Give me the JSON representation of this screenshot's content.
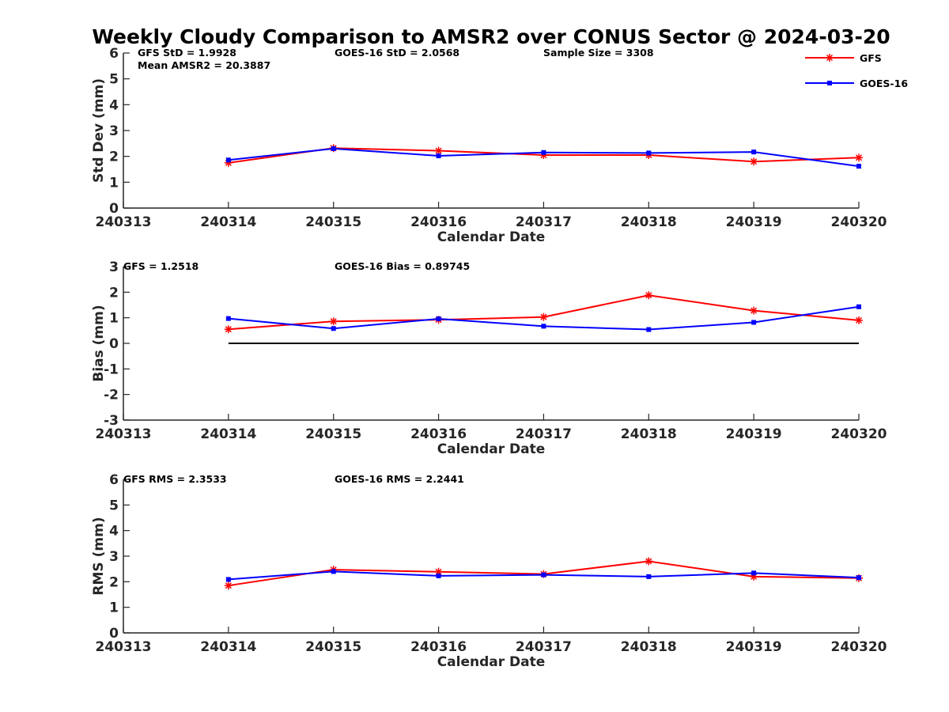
{
  "chart_data": {
    "title": "Weekly Cloudy Comparison to AMSR2 over CONUS Sector @ 2024-03-20",
    "type": "line",
    "x_ticks": [
      "240313",
      "240314",
      "240315",
      "240316",
      "240317",
      "240318",
      "240319",
      "240320"
    ],
    "x": [
      "240314",
      "240315",
      "240316",
      "240317",
      "240318",
      "240319",
      "240320"
    ],
    "legend": {
      "position": "top-right",
      "entries": [
        {
          "name": "GFS",
          "color": "#ff0000",
          "marker": "asterisk"
        },
        {
          "name": "GOES-16",
          "color": "#0000ff",
          "marker": "square"
        }
      ]
    },
    "panels": [
      {
        "ylabel": "Std Dev (mm)",
        "xlabel": "Calendar Date",
        "ylim": [
          0,
          6
        ],
        "yticks": [
          "0",
          "1",
          "2",
          "3",
          "4",
          "5",
          "6"
        ],
        "annotations": [
          "GFS StD = 1.9928",
          "Mean AMSR2 = 20.3887",
          "GOES-16 StD = 2.0568",
          "Sample Size = 3308"
        ],
        "series": [
          {
            "name": "GFS",
            "values": [
              1.75,
              2.32,
              2.22,
              2.05,
              2.05,
              1.8,
              1.95
            ]
          },
          {
            "name": "GOES-16",
            "values": [
              1.86,
              2.3,
              2.02,
              2.15,
              2.13,
              2.17,
              1.62
            ]
          }
        ]
      },
      {
        "ylabel": "Bias (mm)",
        "xlabel": "Calendar Date",
        "ylim": [
          -3,
          3
        ],
        "yticks": [
          "-3",
          "-2",
          "-1",
          "0",
          "1",
          "2",
          "3"
        ],
        "zero_line": true,
        "annotations": [
          "GFS = 1.2518",
          "GOES-16 Bias  = 0.89745"
        ],
        "series": [
          {
            "name": "GFS",
            "values": [
              0.55,
              0.86,
              0.92,
              1.03,
              1.88,
              1.28,
              0.9
            ]
          },
          {
            "name": "GOES-16",
            "values": [
              0.97,
              0.58,
              0.96,
              0.67,
              0.54,
              0.82,
              1.43
            ]
          }
        ]
      },
      {
        "ylabel": "RMS (mm)",
        "xlabel": "Calendar Date",
        "ylim": [
          0,
          6
        ],
        "yticks": [
          "0",
          "1",
          "2",
          "3",
          "4",
          "5",
          "6"
        ],
        "annotations": [
          "GFS RMS = 2.3533",
          "GOES-16 RMS = 2.2441"
        ],
        "series": [
          {
            "name": "GFS",
            "values": [
              1.85,
              2.47,
              2.39,
              2.3,
              2.8,
              2.2,
              2.14
            ]
          },
          {
            "name": "GOES-16",
            "values": [
              2.09,
              2.4,
              2.23,
              2.27,
              2.2,
              2.34,
              2.16
            ]
          }
        ]
      }
    ]
  }
}
